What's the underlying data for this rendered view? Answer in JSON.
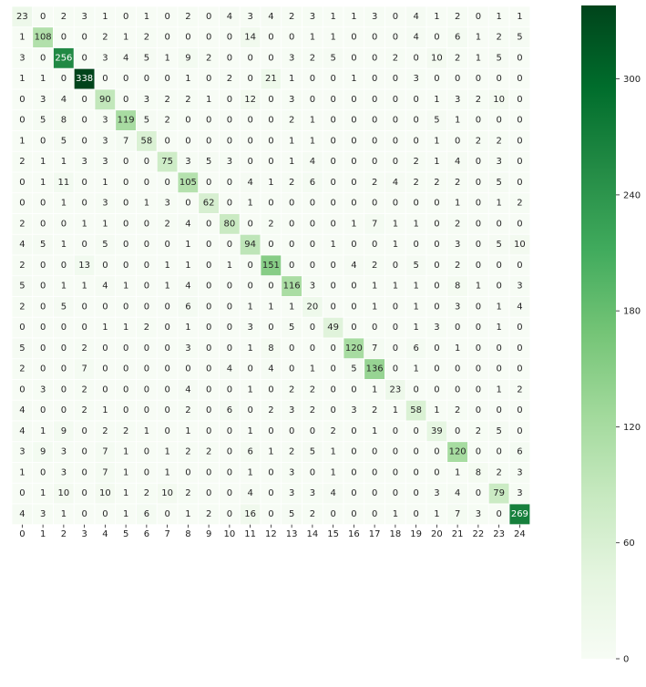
{
  "chart_data": {
    "type": "heatmap",
    "title": "",
    "xlabel": "",
    "ylabel": "",
    "x_ticks": [
      "0",
      "1",
      "2",
      "3",
      "4",
      "5",
      "6",
      "7",
      "8",
      "9",
      "10",
      "11",
      "12",
      "13",
      "14",
      "15",
      "16",
      "17",
      "18",
      "19",
      "20",
      "21",
      "22",
      "23",
      "24"
    ],
    "y_ticks": [],
    "colormap": "Greens",
    "vmin": 0,
    "vmax": 338,
    "colorbar_ticks": [
      0,
      60,
      120,
      180,
      240,
      300
    ],
    "colorbar_tick_labels": [
      "0",
      "60",
      "120",
      "180",
      "240",
      "300"
    ],
    "matrix": [
      [
        23,
        0,
        2,
        3,
        1,
        0,
        1,
        0,
        2,
        0,
        4,
        3,
        4,
        2,
        3,
        1,
        1,
        3,
        0,
        4,
        1,
        2,
        0,
        1,
        1
      ],
      [
        1,
        108,
        0,
        0,
        2,
        1,
        2,
        0,
        0,
        0,
        0,
        14,
        0,
        0,
        1,
        1,
        0,
        0,
        0,
        4,
        0,
        6,
        1,
        2,
        5
      ],
      [
        3,
        0,
        256,
        0,
        3,
        4,
        5,
        1,
        9,
        2,
        0,
        0,
        0,
        3,
        2,
        5,
        0,
        0,
        2,
        0,
        10,
        2,
        1,
        5,
        0
      ],
      [
        1,
        1,
        0,
        338,
        0,
        0,
        0,
        0,
        1,
        0,
        2,
        0,
        21,
        1,
        0,
        0,
        1,
        0,
        0,
        3,
        0,
        0,
        0,
        0,
        0
      ],
      [
        0,
        3,
        4,
        0,
        90,
        0,
        3,
        2,
        2,
        1,
        0,
        12,
        0,
        3,
        0,
        0,
        0,
        0,
        0,
        0,
        1,
        3,
        2,
        10,
        0
      ],
      [
        0,
        5,
        8,
        0,
        3,
        119,
        5,
        2,
        0,
        0,
        0,
        0,
        0,
        2,
        1,
        0,
        0,
        0,
        0,
        0,
        5,
        1,
        0,
        0,
        0
      ],
      [
        1,
        0,
        5,
        0,
        3,
        7,
        58,
        0,
        0,
        0,
        0,
        0,
        0,
        1,
        1,
        0,
        0,
        0,
        0,
        0,
        1,
        0,
        2,
        2,
        0
      ],
      [
        2,
        1,
        1,
        3,
        3,
        0,
        0,
        75,
        3,
        5,
        3,
        0,
        0,
        1,
        4,
        0,
        0,
        0,
        0,
        2,
        1,
        4,
        0,
        3,
        0
      ],
      [
        0,
        1,
        11,
        0,
        1,
        0,
        0,
        0,
        105,
        0,
        0,
        4,
        1,
        2,
        6,
        0,
        0,
        2,
        4,
        2,
        2,
        2,
        0,
        5,
        0
      ],
      [
        0,
        0,
        1,
        0,
        3,
        0,
        1,
        3,
        0,
        62,
        0,
        1,
        0,
        0,
        0,
        0,
        0,
        0,
        0,
        0,
        0,
        1,
        0,
        1,
        2
      ],
      [
        2,
        0,
        0,
        1,
        1,
        0,
        0,
        2,
        4,
        0,
        80,
        0,
        2,
        0,
        0,
        0,
        1,
        7,
        1,
        1,
        0,
        2,
        0,
        0,
        0
      ],
      [
        4,
        5,
        1,
        0,
        5,
        0,
        0,
        0,
        1,
        0,
        0,
        94,
        0,
        0,
        0,
        1,
        0,
        0,
        1,
        0,
        0,
        3,
        0,
        5,
        10
      ],
      [
        2,
        0,
        0,
        13,
        0,
        0,
        0,
        1,
        1,
        0,
        1,
        0,
        151,
        0,
        0,
        0,
        4,
        2,
        0,
        5,
        0,
        2,
        0,
        0,
        0
      ],
      [
        5,
        0,
        1,
        1,
        4,
        1,
        0,
        1,
        4,
        0,
        0,
        0,
        0,
        116,
        3,
        0,
        0,
        1,
        1,
        1,
        0,
        8,
        1,
        0,
        3
      ],
      [
        2,
        0,
        5,
        0,
        0,
        0,
        0,
        0,
        6,
        0,
        0,
        1,
        1,
        1,
        20,
        0,
        0,
        1,
        0,
        1,
        0,
        3,
        0,
        1,
        4
      ],
      [
        0,
        0,
        0,
        0,
        1,
        1,
        2,
        0,
        1,
        0,
        0,
        3,
        0,
        5,
        0,
        49,
        0,
        0,
        0,
        1,
        3,
        0,
        0,
        1,
        0
      ],
      [
        5,
        0,
        0,
        2,
        0,
        0,
        0,
        0,
        3,
        0,
        0,
        1,
        8,
        0,
        0,
        0,
        120,
        7,
        0,
        6,
        0,
        1,
        0,
        0,
        0
      ],
      [
        2,
        0,
        0,
        7,
        0,
        0,
        0,
        0,
        0,
        0,
        4,
        0,
        4,
        0,
        1,
        0,
        5,
        136,
        0,
        1,
        0,
        0,
        0,
        0,
        0
      ],
      [
        0,
        3,
        0,
        2,
        0,
        0,
        0,
        0,
        4,
        0,
        0,
        1,
        0,
        2,
        2,
        0,
        0,
        1,
        23,
        0,
        0,
        0,
        0,
        1,
        2
      ],
      [
        4,
        0,
        0,
        2,
        1,
        0,
        0,
        0,
        2,
        0,
        6,
        0,
        2,
        3,
        2,
        0,
        3,
        2,
        1,
        58,
        1,
        2,
        0,
        0,
        0
      ],
      [
        4,
        1,
        9,
        0,
        2,
        2,
        1,
        0,
        1,
        0,
        0,
        1,
        0,
        0,
        0,
        2,
        0,
        1,
        0,
        0,
        39,
        0,
        2,
        5,
        0
      ],
      [
        3,
        9,
        3,
        0,
        7,
        1,
        0,
        1,
        2,
        2,
        0,
        6,
        1,
        2,
        5,
        1,
        0,
        0,
        0,
        0,
        0,
        120,
        0,
        0,
        6
      ],
      [
        1,
        0,
        3,
        0,
        7,
        1,
        0,
        1,
        0,
        0,
        0,
        1,
        0,
        3,
        0,
        1,
        0,
        0,
        0,
        0,
        0,
        1,
        8,
        2,
        3
      ],
      [
        0,
        1,
        10,
        0,
        10,
        1,
        2,
        10,
        2,
        0,
        0,
        4,
        0,
        3,
        3,
        4,
        0,
        0,
        0,
        0,
        3,
        4,
        0,
        79,
        3
      ],
      [
        4,
        3,
        1,
        0,
        0,
        1,
        6,
        0,
        1,
        2,
        0,
        16,
        0,
        5,
        2,
        0,
        0,
        0,
        1,
        0,
        1,
        7,
        3,
        0,
        269
      ]
    ]
  }
}
